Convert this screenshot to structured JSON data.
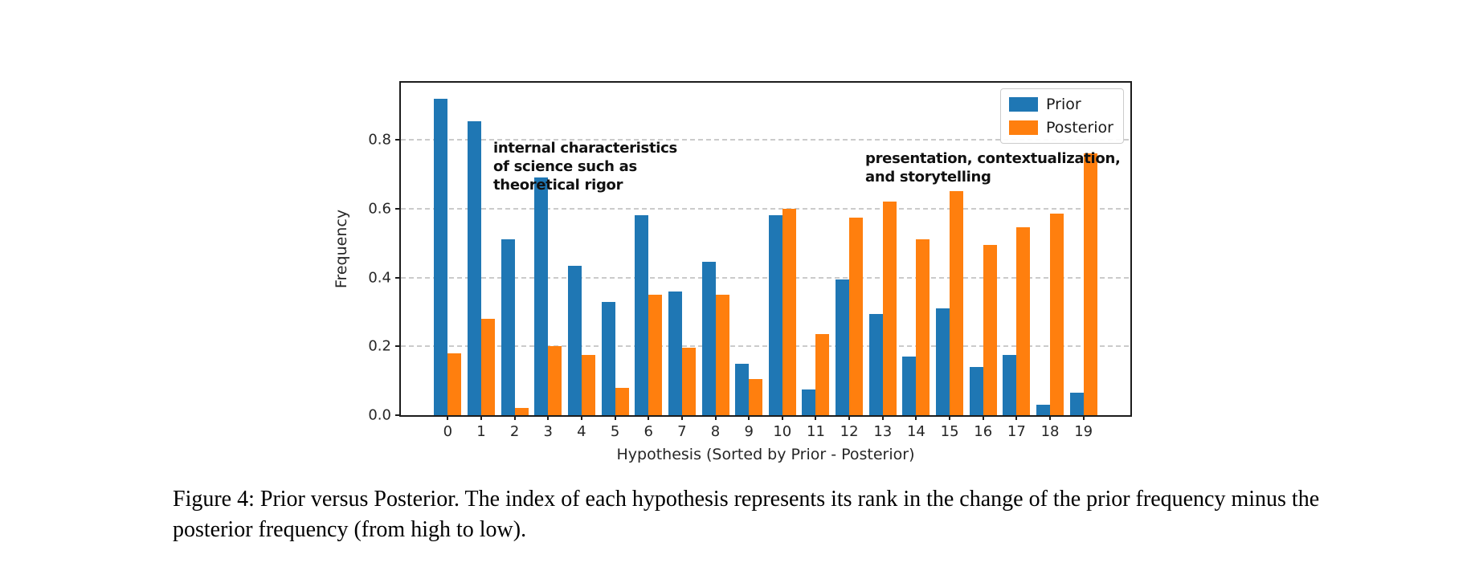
{
  "figure": {
    "caption": "Figure 4: Prior versus Posterior. The index of each hypothesis represents its rank in the change of the prior frequency minus the posterior frequency (from high to low)."
  },
  "chart_data": {
    "type": "bar",
    "title": "",
    "xlabel": "Hypothesis (Sorted by Prior - Posterior)",
    "ylabel": "Frequency",
    "categories": [
      "0",
      "1",
      "2",
      "3",
      "4",
      "5",
      "6",
      "7",
      "8",
      "9",
      "10",
      "11",
      "12",
      "13",
      "14",
      "15",
      "16",
      "17",
      "18",
      "19"
    ],
    "series": [
      {
        "name": "Prior",
        "color": "#1f77b4",
        "values": [
          0.92,
          0.855,
          0.51,
          0.69,
          0.435,
          0.33,
          0.58,
          0.36,
          0.445,
          0.15,
          0.58,
          0.075,
          0.395,
          0.295,
          0.17,
          0.31,
          0.14,
          0.175,
          0.03,
          0.065
        ]
      },
      {
        "name": "Posterior",
        "color": "#ff7f0e",
        "values": [
          0.18,
          0.28,
          0.02,
          0.2,
          0.175,
          0.08,
          0.35,
          0.195,
          0.35,
          0.105,
          0.6,
          0.235,
          0.575,
          0.62,
          0.51,
          0.65,
          0.495,
          0.545,
          0.585,
          0.76
        ]
      }
    ],
    "yticks": [
      0.0,
      0.2,
      0.4,
      0.6,
      0.8
    ],
    "ylim": [
      0,
      0.966
    ],
    "grid": "horizontal-dashed",
    "legend_position": "upper-right",
    "annotations": [
      {
        "id": "left",
        "text": "internal characteristics\nof science such as\ntheoretical rigor"
      },
      {
        "id": "right",
        "text": "presentation, contextualization,\nand storytelling"
      }
    ]
  }
}
